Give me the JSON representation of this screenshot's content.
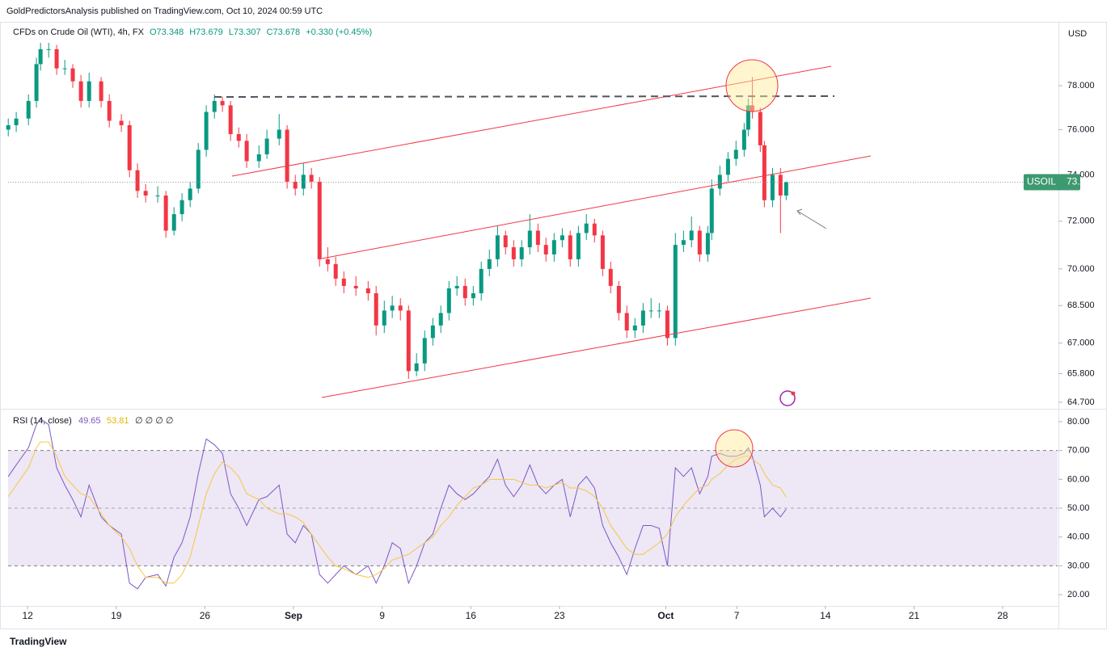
{
  "publisher": "GoldPredictorsAnalysis published on TradingView.com, Oct 10, 2024 00:59 UTC",
  "footer": "TradingView",
  "chart_data": [
    {
      "type": "candlestick",
      "title": "CFDs on Crude Oil (WTI), 4h, FX",
      "ohlc_labels": [
        "O73.348",
        "H73.679",
        "L73.307",
        "C73.678",
        "+0.330 (+0.45%)"
      ],
      "currency": "USD",
      "symbol": "USOIL",
      "log_scale": true,
      "up_color": "#089981",
      "down_color": "#f23645",
      "xlim": [
        -1.1,
        58.1
      ],
      "ylim": [
        64.48,
        80.96
      ],
      "yticks": [
        {
          "value": 78,
          "label": "78.000"
        },
        {
          "value": 76,
          "label": "76.000"
        },
        {
          "value": 74,
          "label": "74.000"
        },
        {
          "value": 72,
          "label": "72.000"
        },
        {
          "value": 70,
          "label": "70.000"
        },
        {
          "value": 68.5,
          "label": "68.500"
        },
        {
          "value": 67,
          "label": "67.000"
        },
        {
          "value": 65.8,
          "label": "65.800"
        },
        {
          "value": 64.7,
          "label": "64.700"
        }
      ],
      "x": [
        -1.09,
        -0.64,
        0.05,
        0.5,
        0.73,
        1.19,
        1.64,
        2.1,
        2.55,
        3.01,
        3.47,
        4.15,
        4.61,
        5.29,
        5.75,
        6.2,
        6.66,
        7.34,
        7.8,
        8.26,
        8.71,
        9.17,
        9.63,
        10.08,
        10.54,
        10.99,
        11.45,
        11.91,
        12.36,
        13.05,
        13.5,
        14.19,
        14.64,
        15.1,
        15.56,
        16.01,
        16.47,
        16.93,
        17.38,
        17.84,
        18.52,
        19.21,
        19.66,
        20.12,
        20.57,
        21.03,
        21.49,
        21.94,
        22.4,
        22.86,
        23.31,
        23.77,
        24.22,
        24.68,
        25.14,
        25.59,
        26.05,
        26.51,
        26.96,
        27.42,
        27.87,
        28.33,
        28.79,
        29.24,
        29.7,
        30.16,
        30.61,
        31.07,
        31.52,
        31.98,
        32.44,
        32.89,
        33.35,
        33.8,
        34.26,
        34.72,
        35.17,
        35.63,
        36.09,
        36.54,
        37,
        37.45,
        37.91,
        38.37,
        38.59,
        39.05,
        39.51,
        39.96,
        40.42,
        40.65,
        40.88,
        41.33,
        41.56,
        42.02,
        42.47,
        42.79
      ],
      "open": [
        76.0,
        76.2,
        76.5,
        77.3,
        79,
        79.7,
        79.7,
        78.8,
        78.8,
        78.2,
        77.3,
        78.2,
        77.3,
        76.4,
        76.2,
        74.2,
        73.3,
        73.1,
        73.1,
        71.6,
        72.3,
        72.9,
        73.4,
        75.1,
        76.8,
        77.3,
        77.1,
        75.8,
        75.5,
        74.6,
        74.9,
        75.6,
        76,
        73.7,
        73.4,
        74,
        73.7,
        70.4,
        70.2,
        69.6,
        69.3,
        69.2,
        69,
        67.7,
        68.3,
        68.5,
        68.3,
        65.9,
        66.2,
        67.2,
        67.7,
        68.2,
        69.2,
        69.3,
        68.8,
        69,
        70,
        70.4,
        71.4,
        70.9,
        70.4,
        70.9,
        71.6,
        71,
        70.6,
        71.2,
        71.4,
        70.4,
        71.5,
        71.9,
        71.4,
        70,
        69.3,
        68.2,
        67.5,
        67.7,
        68.3,
        68.3,
        68.3,
        67.2,
        71,
        71.2,
        71.6,
        70.6,
        71.5,
        73.4,
        74,
        74.7,
        75.1,
        76,
        77.1,
        76.8,
        75.3,
        72.9,
        74,
        73.1
      ],
      "high": [
        76.5,
        76.8,
        77.6,
        79.3,
        80.0,
        80.0,
        79.9,
        79.2,
        79.0,
        78.5,
        78.6,
        78.4,
        77.6,
        76.7,
        76.4,
        74.5,
        73.6,
        73.5,
        73.3,
        72.6,
        73.2,
        73.7,
        75.4,
        77.1,
        77.6,
        77.5,
        77.3,
        76.1,
        75.8,
        75.3,
        76.0,
        76.7,
        76.2,
        74.0,
        74.5,
        74.3,
        73.9,
        70.9,
        70.5,
        69.9,
        69.7,
        69.5,
        69.3,
        68.7,
        68.9,
        68.8,
        68.5,
        66.6,
        67.5,
        68.0,
        68.5,
        69.5,
        69.7,
        69.6,
        69.3,
        70.3,
        70.8,
        71.8,
        71.6,
        71.2,
        71.2,
        72.3,
        71.9,
        71.3,
        71.5,
        71.7,
        71.6,
        71.8,
        72.3,
        72.1,
        71.6,
        70.3,
        69.5,
        68.5,
        68.0,
        68.6,
        68.8,
        68.6,
        68.5,
        71.5,
        71.6,
        72.2,
        71.8,
        71.8,
        73.8,
        74.4,
        75.0,
        75.5,
        76.3,
        77.4,
        78.4,
        77.0,
        75.5,
        74.3,
        74.3,
        73.7
      ],
      "low": [
        75.7,
        75.9,
        76.2,
        77.0,
        78.7,
        79.3,
        78.5,
        78.5,
        77.9,
        77.0,
        77.0,
        77.0,
        76.1,
        75.9,
        73.9,
        73.0,
        72.8,
        72.8,
        71.3,
        71.4,
        72.0,
        72.6,
        73.2,
        74.8,
        76.5,
        76.8,
        75.5,
        75.2,
        74.3,
        74.3,
        74.7,
        75.3,
        73.4,
        73.1,
        73.1,
        73.4,
        70.1,
        69.9,
        69.3,
        69.0,
        68.9,
        68.7,
        67.3,
        67.4,
        68.0,
        67.9,
        65.6,
        65.7,
        65.9,
        66.9,
        67.4,
        67.9,
        68.9,
        68.5,
        68.5,
        68.7,
        69.7,
        70.1,
        70.6,
        70.1,
        70.1,
        70.6,
        70.7,
        70.3,
        70.3,
        70.9,
        70.1,
        70.1,
        71.2,
        71.1,
        69.7,
        69.0,
        67.9,
        67.2,
        67.2,
        67.4,
        68.0,
        68.0,
        66.9,
        66.9,
        70.7,
        70.9,
        70.3,
        70.3,
        71.2,
        73.1,
        73.7,
        74.4,
        74.8,
        75.7,
        76.5,
        75.0,
        72.6,
        72.6,
        71.5,
        72.9
      ],
      "close": [
        76.2,
        76.5,
        77.3,
        79,
        79.7,
        79.7,
        78.8,
        78.8,
        78.2,
        77.3,
        78.2,
        77.3,
        76.4,
        76.2,
        74.2,
        73.3,
        73.1,
        73.1,
        71.6,
        72.3,
        72.9,
        73.4,
        75.1,
        76.8,
        77.3,
        77.1,
        75.8,
        75.5,
        74.6,
        74.9,
        75.6,
        76,
        73.7,
        73.4,
        74,
        73.7,
        70.4,
        70.2,
        69.6,
        69.3,
        69.2,
        69,
        67.7,
        68.3,
        68.5,
        68.3,
        65.9,
        66.2,
        67.2,
        67.7,
        68.2,
        69.2,
        69.3,
        68.8,
        69,
        70,
        70.4,
        71.4,
        70.9,
        70.4,
        70.9,
        71.6,
        71,
        70.6,
        71.2,
        71.4,
        70.4,
        71.5,
        71.9,
        71.4,
        70,
        69.3,
        68.2,
        67.5,
        67.7,
        68.3,
        68.3,
        68.3,
        67.2,
        71,
        71.2,
        71.6,
        70.6,
        71.5,
        73.4,
        74,
        74.7,
        75.1,
        76,
        77.1,
        76.8,
        75.3,
        72.9,
        74,
        73.1,
        73.678
      ],
      "last_label_color": "#3d9970"
    },
    {
      "type": "line",
      "title": "RSI (14, close)",
      "extra": "∅ ∅ ∅ ∅",
      "xlim": [
        -1.1,
        58.1
      ],
      "ylim": [
        16.1,
        84.2
      ],
      "xticks": [
        {
          "value": 0,
          "label": "12"
        },
        {
          "value": 5,
          "label": "19"
        },
        {
          "value": 10,
          "label": "26"
        },
        {
          "value": 15,
          "label": "Sep"
        },
        {
          "value": 20,
          "label": "9"
        },
        {
          "value": 25,
          "label": "16"
        },
        {
          "value": 30,
          "label": "23"
        },
        {
          "value": 36,
          "label": "Oct"
        },
        {
          "value": 40,
          "label": "7"
        },
        {
          "value": 45,
          "label": "14"
        },
        {
          "value": 50,
          "label": "21"
        },
        {
          "value": 55,
          "label": "28"
        }
      ],
      "yticks": [
        {
          "value": 80,
          "label": "80.00"
        },
        {
          "value": 70,
          "label": "70.00"
        },
        {
          "value": 60,
          "label": "60.00"
        },
        {
          "value": 50,
          "label": "50.00"
        },
        {
          "value": 40,
          "label": "40.00"
        },
        {
          "value": 30,
          "label": "30.00"
        },
        {
          "value": 20,
          "label": "20.00"
        }
      ],
      "band": [
        30,
        70
      ],
      "midline": 50,
      "band_color": "#ede7f6",
      "x": [
        -1.09,
        -0.64,
        0.05,
        0.5,
        0.73,
        1.19,
        1.64,
        2.1,
        2.55,
        3.01,
        3.47,
        4.15,
        4.61,
        5.29,
        5.75,
        6.2,
        6.66,
        7.34,
        7.8,
        8.26,
        8.71,
        9.17,
        9.63,
        10.08,
        10.54,
        10.99,
        11.45,
        11.91,
        12.36,
        13.05,
        13.5,
        14.19,
        14.64,
        15.1,
        15.56,
        16.01,
        16.47,
        16.93,
        17.38,
        17.84,
        18.52,
        19.21,
        19.66,
        20.12,
        20.57,
        21.03,
        21.49,
        21.94,
        22.4,
        22.86,
        23.31,
        23.77,
        24.22,
        24.68,
        25.14,
        25.59,
        26.05,
        26.51,
        26.96,
        27.42,
        27.87,
        28.33,
        28.79,
        29.24,
        29.7,
        30.16,
        30.61,
        31.07,
        31.52,
        31.98,
        32.44,
        32.89,
        33.35,
        33.8,
        34.26,
        34.72,
        35.17,
        35.63,
        36.09,
        36.54,
        37,
        37.45,
        37.91,
        38.37,
        38.59,
        39.05,
        39.51,
        39.96,
        40.42,
        40.65,
        40.88,
        41.33,
        41.56,
        42.02,
        42.47,
        42.79
      ],
      "series": [
        {
          "color": "#7e57c2",
          "values": [
            61,
            65,
            71,
            79,
            81,
            79,
            64,
            58,
            53,
            47,
            58,
            47,
            44,
            41,
            24,
            22,
            26,
            27,
            23,
            33,
            38,
            47,
            62,
            74,
            72,
            69,
            55,
            50,
            44,
            53,
            54,
            58,
            41,
            38,
            44,
            41,
            27,
            24,
            27,
            30,
            27,
            30,
            24,
            30,
            38,
            36,
            24,
            30,
            38,
            41,
            50,
            58,
            55,
            53,
            55,
            58,
            61,
            67,
            58,
            54,
            58,
            65,
            58,
            55,
            58,
            60,
            47,
            58,
            61,
            57,
            44,
            38,
            33,
            27,
            36,
            44,
            44,
            43,
            30,
            64,
            61,
            64,
            55,
            61,
            68,
            69,
            68,
            68,
            69,
            71,
            68,
            58,
            47,
            50,
            47,
            49.65
          ]
        },
        {
          "color": "#f5c842",
          "values": [
            54,
            58,
            64,
            71,
            73,
            73,
            68,
            61,
            58,
            55,
            54,
            48,
            44,
            40,
            36,
            30,
            26,
            26,
            24,
            24,
            27,
            33,
            44,
            55,
            62,
            66,
            64,
            61,
            55,
            53,
            50,
            48,
            48,
            47,
            45,
            41,
            37,
            33,
            30,
            29,
            27,
            26,
            27,
            29,
            32,
            33,
            34,
            36,
            38,
            40,
            44,
            47,
            51,
            54,
            57,
            58,
            60,
            60,
            60,
            60,
            59,
            58,
            58,
            57,
            58,
            59,
            57,
            57,
            56,
            54,
            50,
            44,
            40,
            36,
            34,
            34,
            36,
            38,
            41,
            47,
            51,
            54,
            57,
            58,
            60,
            62,
            65,
            67,
            68,
            68,
            67,
            65,
            62,
            58,
            57,
            53.81
          ]
        }
      ]
    }
  ]
}
